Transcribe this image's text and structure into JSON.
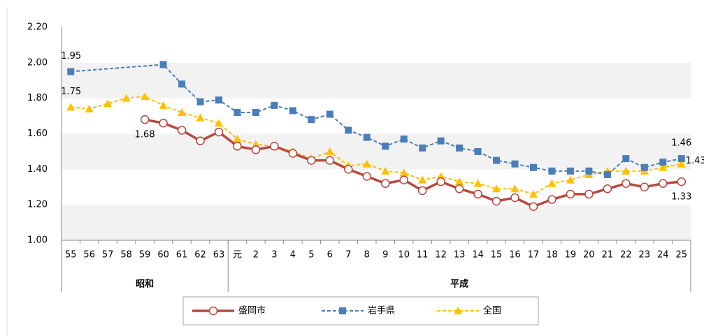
{
  "chart_data": {
    "type": "line",
    "groups": [
      {
        "name": "昭和",
        "categories": [
          "55",
          "56",
          "57",
          "58",
          "59",
          "60",
          "61",
          "62",
          "63"
        ]
      },
      {
        "name": "平成",
        "categories": [
          "元",
          "2",
          "3",
          "4",
          "5",
          "6",
          "7",
          "8",
          "9",
          "10",
          "11",
          "12",
          "13",
          "14",
          "15",
          "16",
          "17",
          "18",
          "19",
          "20",
          "21",
          "22",
          "23",
          "24",
          "25"
        ]
      }
    ],
    "series": [
      {
        "name": "盛岡市",
        "color": "#b9473e",
        "marker": "circle",
        "dashed": false,
        "values": [
          null,
          null,
          null,
          null,
          1.68,
          1.66,
          1.62,
          1.56,
          1.61,
          1.53,
          1.51,
          1.53,
          1.49,
          1.45,
          1.45,
          1.4,
          1.36,
          1.32,
          1.34,
          1.28,
          1.33,
          1.29,
          1.26,
          1.22,
          1.24,
          1.19,
          1.23,
          1.26,
          1.26,
          1.29,
          1.32,
          1.3,
          1.32,
          1.33
        ],
        "value_labels": [
          null,
          null,
          null,
          null,
          "1.68",
          null,
          null,
          null,
          null,
          null,
          null,
          null,
          null,
          null,
          null,
          null,
          null,
          null,
          null,
          null,
          null,
          null,
          null,
          null,
          null,
          null,
          null,
          null,
          null,
          null,
          null,
          null,
          null,
          "1.33"
        ]
      },
      {
        "name": "岩手県",
        "color": "#4a7ebb",
        "marker": "square",
        "dashed": true,
        "values": [
          1.95,
          null,
          null,
          null,
          null,
          1.99,
          1.88,
          1.78,
          1.79,
          1.72,
          1.72,
          1.76,
          1.73,
          1.68,
          1.71,
          1.62,
          1.58,
          1.53,
          1.57,
          1.52,
          1.56,
          1.52,
          1.5,
          1.45,
          1.43,
          1.41,
          1.39,
          1.39,
          1.39,
          1.37,
          1.46,
          1.41,
          1.44,
          1.46
        ],
        "value_labels": [
          "1.95",
          null,
          null,
          null,
          null,
          null,
          null,
          null,
          null,
          null,
          null,
          null,
          null,
          null,
          null,
          null,
          null,
          null,
          null,
          null,
          null,
          null,
          null,
          null,
          null,
          null,
          null,
          null,
          null,
          null,
          null,
          null,
          null,
          "1.46"
        ]
      },
      {
        "name": "全国",
        "color": "#ffc000",
        "marker": "triangle",
        "dashed": true,
        "values": [
          1.75,
          1.74,
          1.77,
          1.8,
          1.81,
          1.76,
          1.72,
          1.69,
          1.66,
          1.57,
          1.54,
          1.53,
          1.5,
          1.46,
          1.5,
          1.42,
          1.43,
          1.39,
          1.38,
          1.34,
          1.36,
          1.33,
          1.32,
          1.29,
          1.29,
          1.26,
          1.32,
          1.34,
          1.37,
          1.39,
          1.39,
          1.39,
          1.41,
          1.43
        ],
        "value_labels": [
          "1.75",
          null,
          null,
          null,
          null,
          null,
          null,
          null,
          null,
          null,
          null,
          null,
          null,
          null,
          null,
          null,
          null,
          null,
          null,
          null,
          null,
          null,
          null,
          null,
          null,
          null,
          null,
          null,
          null,
          null,
          null,
          null,
          null,
          "1.43"
        ]
      }
    ],
    "span_gaps": true,
    "ylim": [
      1.0,
      2.2
    ],
    "yticks": [
      {
        "value": 1.0,
        "label": "1.00"
      },
      {
        "value": 1.2,
        "label": "1.20"
      },
      {
        "value": 1.4,
        "label": "1.40"
      },
      {
        "value": 1.6,
        "label": "1.60"
      },
      {
        "value": 1.8,
        "label": "1.80"
      },
      {
        "value": 2.0,
        "label": "2.00"
      },
      {
        "value": 2.2,
        "label": "2.20"
      }
    ],
    "banded": true,
    "legend": "bottom"
  }
}
